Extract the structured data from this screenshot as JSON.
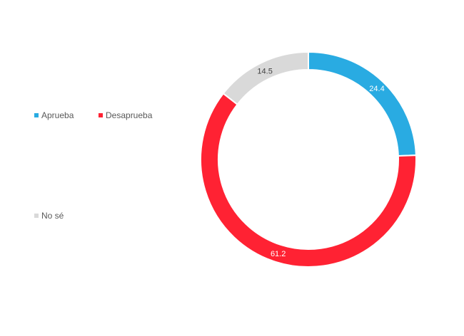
{
  "chart_data": {
    "type": "pie",
    "subtype": "donut",
    "title": "",
    "categories": [
      "Aprueba",
      "Desaprueba",
      "No sé"
    ],
    "values": [
      24.4,
      61.2,
      14.5
    ],
    "colors": [
      "#29ABE2",
      "#FF2233",
      "#D9D9D9"
    ],
    "label_colors": [
      "#ffffff",
      "#ffffff",
      "#404040"
    ],
    "legend": [
      {
        "label": "Aprueba",
        "color": "#29ABE2"
      },
      {
        "label": "Desaprueba",
        "color": "#FF2233"
      },
      {
        "label": "No sé",
        "color": "#D9D9D9"
      }
    ],
    "legend_position": "left",
    "start_angle_deg": 0,
    "direction": "clockwise"
  }
}
